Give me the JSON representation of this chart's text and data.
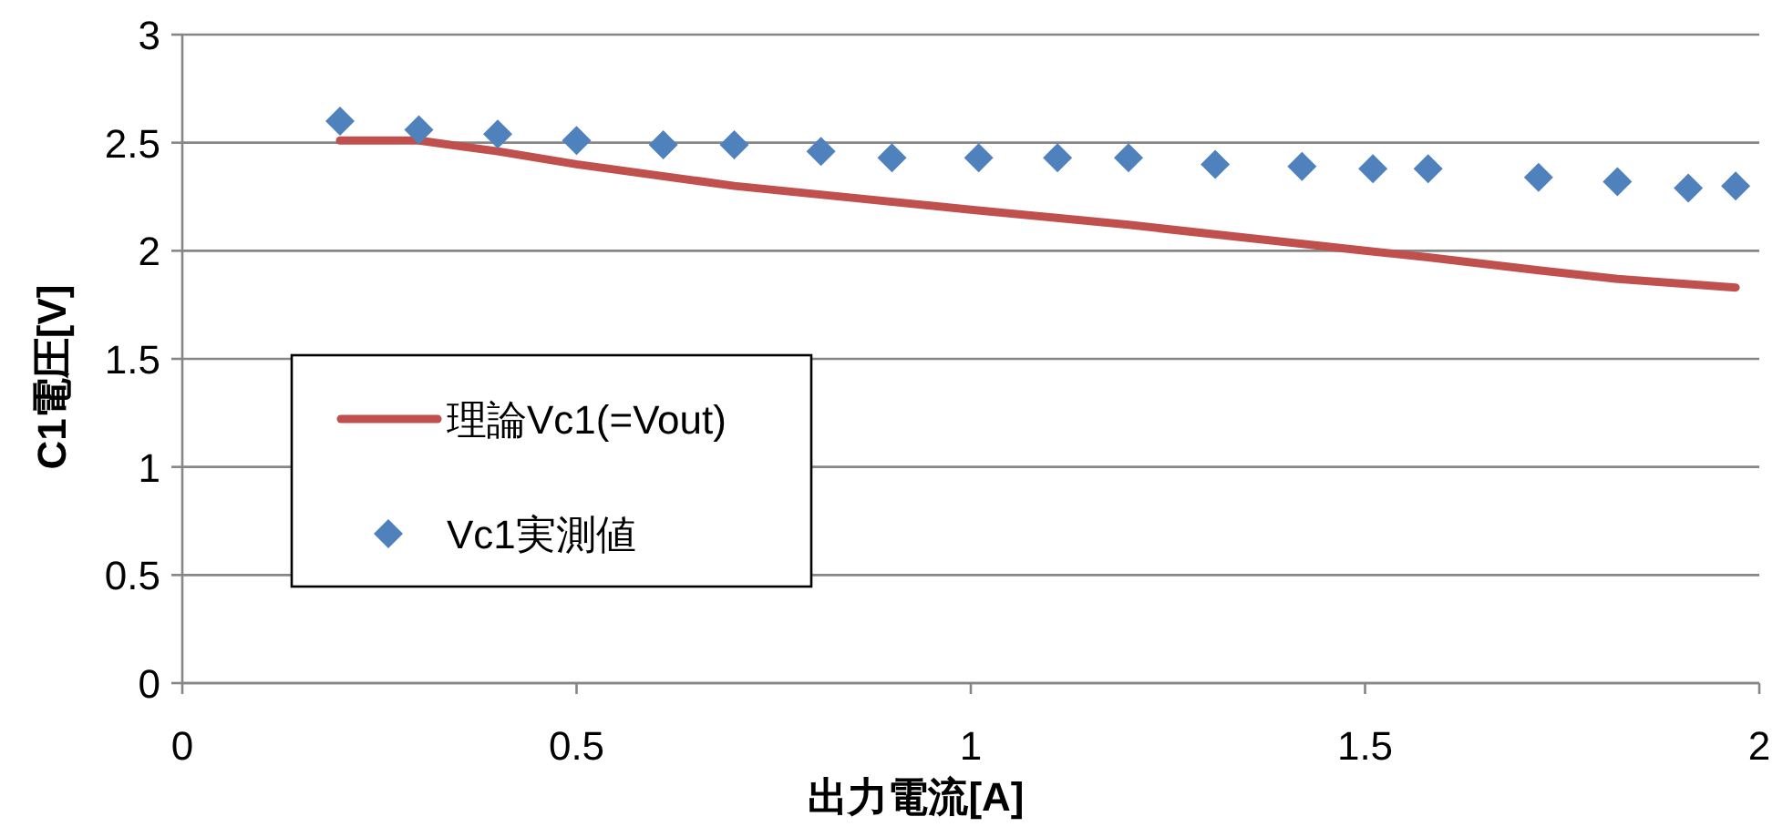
{
  "chart_data": {
    "type": "line",
    "xlabel": "出力電流[A]",
    "ylabel": "C1電圧[V]",
    "xlim": [
      0,
      2
    ],
    "xticks": [
      0,
      0.5,
      1,
      1.5,
      2
    ],
    "ylim": [
      0,
      3
    ],
    "yticks": [
      0,
      0.5,
      1,
      1.5,
      2,
      2.5,
      3
    ],
    "grid": "y",
    "legend": "center left",
    "series": [
      {
        "name": "理論Vc1(=Vout)",
        "color": "#c0504d",
        "marker": "none",
        "x": [
          0.2,
          0.3,
          0.4,
          0.5,
          0.7,
          1.0,
          1.2,
          1.5,
          1.58,
          1.72,
          1.82,
          1.97
        ],
        "values": [
          2.51,
          2.51,
          2.46,
          2.4,
          2.3,
          2.19,
          2.12,
          2.0,
          1.97,
          1.91,
          1.87,
          1.83
        ]
      },
      {
        "name": "Vc1実測値",
        "type": "scatter",
        "color": "#4f81bd",
        "marker": "diamond",
        "x": [
          0.2,
          0.3,
          0.4,
          0.5,
          0.61,
          0.7,
          0.81,
          0.9,
          1.01,
          1.11,
          1.2,
          1.31,
          1.42,
          1.51,
          1.58,
          1.72,
          1.82,
          1.91,
          1.97
        ],
        "values": [
          2.6,
          2.56,
          2.54,
          2.51,
          2.49,
          2.49,
          2.46,
          2.43,
          2.43,
          2.43,
          2.43,
          2.4,
          2.39,
          2.38,
          2.38,
          2.34,
          2.32,
          2.29,
          2.3
        ]
      }
    ]
  }
}
